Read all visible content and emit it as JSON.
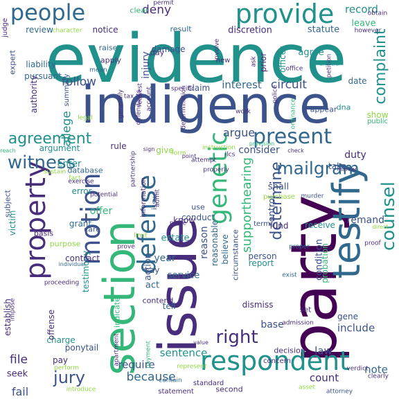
{
  "palette": {
    "purple": "#440154",
    "indigo": "#3b528b",
    "blue": "#31688e",
    "teal": "#21918c",
    "green": "#35b779",
    "lime": "#90d743",
    "yellow": "#d8e219",
    "navy": "#472d7b"
  },
  "words": [
    "evidence",
    "indigence",
    "party",
    "issue",
    "section",
    "testify",
    "provide",
    "respondent",
    "people",
    "property",
    "motion",
    "defense",
    "genetic",
    "counsel",
    "present",
    "mailgram",
    "witness",
    "agreement",
    "right",
    "determine",
    "jury",
    "complaint",
    "follow",
    "circuit",
    "interest",
    "allege",
    "deny",
    "record",
    "leave",
    "review",
    "notice",
    "result",
    "discretion",
    "statute",
    "argue",
    "consider",
    "argument",
    "enter",
    "duty",
    "remand",
    "supporthearing",
    "give",
    "rule",
    "take",
    "dna",
    "appear",
    "show",
    "date",
    "public",
    "claim",
    "damage",
    "injury",
    "raise",
    "day",
    "apply",
    "liability",
    "agree",
    "officer",
    "prior",
    "new",
    "pursuant",
    "authority",
    "expert",
    "issue",
    "summary",
    "year",
    "action",
    "tell",
    "service",
    "reason",
    "reasonable",
    "believe",
    "circumstance",
    "conduct",
    "use",
    "estate",
    "know",
    "offer",
    "grant",
    "victim",
    "establish",
    "testimony",
    "contract",
    "charge",
    "offense",
    "file",
    "pay",
    "seek",
    "fail",
    "because",
    "count",
    "note",
    "require",
    "law",
    "base",
    "gene",
    "include",
    "sentence",
    "ponytail",
    "say",
    "act",
    "indicate",
    "purpose",
    "fund",
    "receive",
    "person",
    "report",
    "shall",
    "control",
    "term",
    "condition",
    "probation",
    "dismiss",
    "decision",
    "contend",
    "error",
    "information",
    "database",
    "care",
    "basis",
    "subject",
    "clear",
    "judge",
    "obtain",
    "however",
    "petition",
    "entitle",
    "mean",
    "involve",
    "ask",
    "request",
    "generally",
    "ordinance",
    "purchase",
    "asset",
    "murder",
    "standard",
    "second",
    "statement",
    "contain",
    "attorney",
    "verdict",
    "clearly",
    "permit",
    "point",
    "sign",
    "provision",
    "breach",
    "check",
    "marker",
    "direct",
    "proof",
    "individual",
    "proceeding",
    "exist",
    "concern",
    "admission",
    "set",
    "value",
    "payment",
    "apartment",
    "potential",
    "exercise",
    "limit",
    "prove",
    "place",
    "proper",
    "work",
    "police",
    "admit",
    "partnership",
    "attempt",
    "form",
    "fact",
    "sustain",
    "perform",
    "impose",
    "legal",
    "character",
    "account",
    "tax",
    "defendants",
    "represent",
    "introduce",
    "specific",
    "determination",
    "office",
    "instruction",
    "llcs",
    "properly",
    "relevant",
    "allow"
  ]
}
